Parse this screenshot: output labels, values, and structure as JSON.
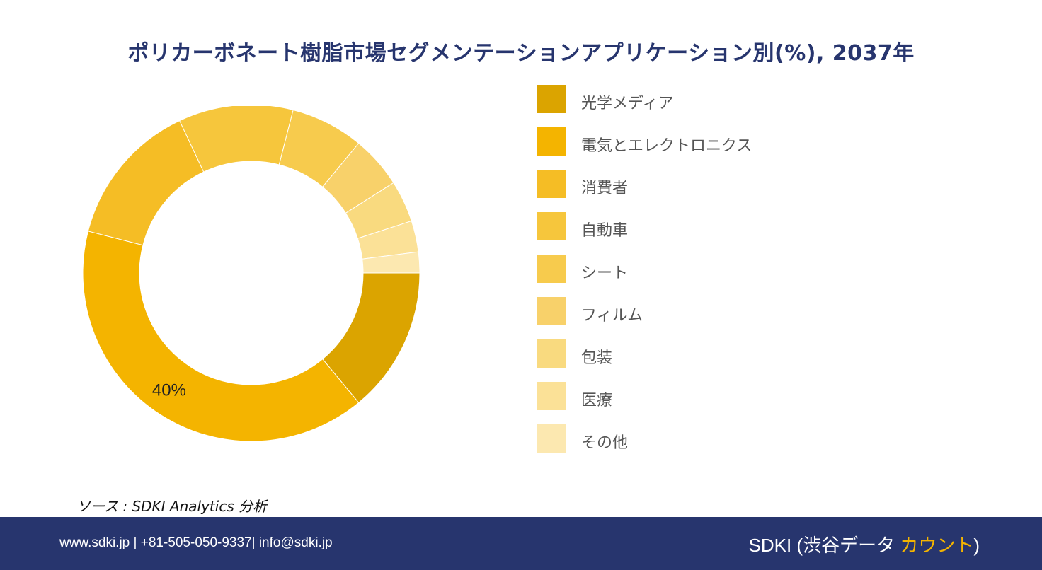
{
  "title": "ポリカーボネート樹脂市場セグメンテーションアプリケーション別(%), 2037年",
  "chart_data": {
    "type": "pie",
    "donut": true,
    "categories": [
      "光学メディア",
      "電気とエレクトロニクス",
      "消費者",
      "自動車",
      "シート",
      "フィルム",
      "包装",
      "医療",
      "その他"
    ],
    "values": [
      14,
      40,
      14,
      11,
      7,
      5,
      4,
      3,
      2
    ],
    "colors": [
      "#dba400",
      "#f4b400",
      "#f5bd25",
      "#f6c63c",
      "#f7cb4d",
      "#f8d16a",
      "#f9da7f",
      "#fbe197",
      "#fce8b0"
    ],
    "data_labels": [
      "",
      "40%",
      "",
      "",
      "",
      "",
      "",
      "",
      ""
    ],
    "legend_position": "right"
  },
  "source": "ソース : SDKI Analytics 分析",
  "footer": {
    "contact": "www.sdki.jp | +81-505-050-9337| info@sdki.jp",
    "brand_prefix": "SDKI (渋谷データ ",
    "brand_accent": "カウント",
    "brand_suffix": ")"
  }
}
